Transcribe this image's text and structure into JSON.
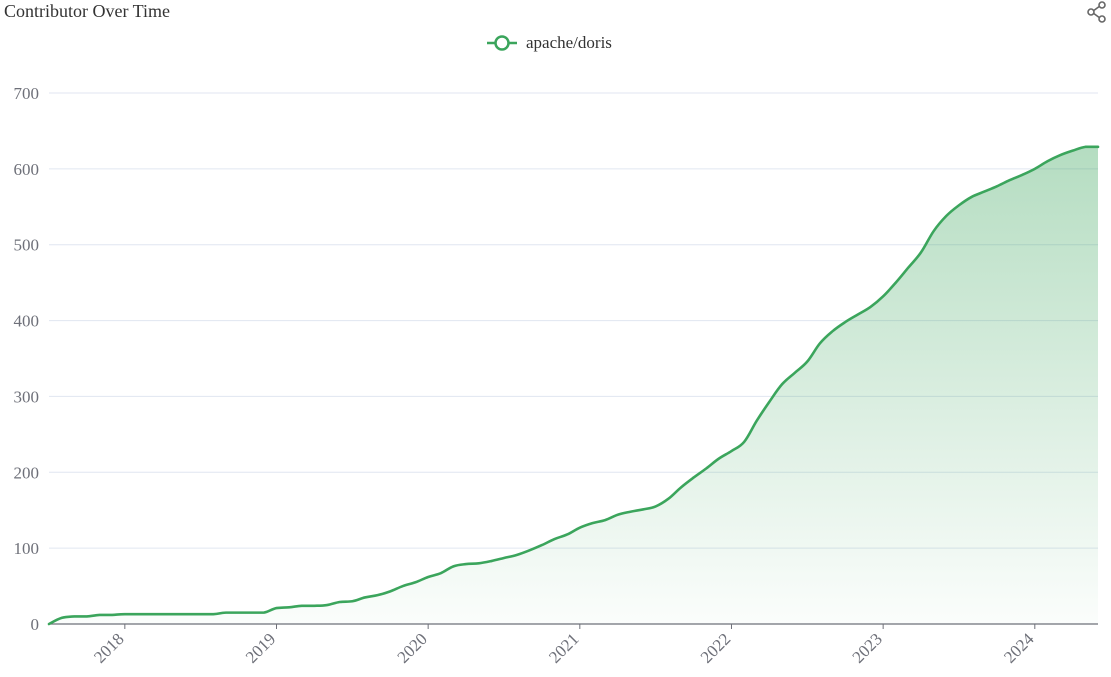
{
  "title": "Contributor Over Time",
  "toolbar": {
    "share_icon": "share-icon"
  },
  "colors": {
    "line": "#3ba55c",
    "area": "#3ba55c",
    "grid": "#e0e6f1",
    "axis": "#6e7079"
  },
  "chart_data": {
    "type": "area",
    "title": "Contributor Over Time",
    "xlabel": "",
    "ylabel": "",
    "ylim": [
      0,
      700
    ],
    "yticks": [
      0,
      100,
      200,
      300,
      400,
      500,
      600,
      700
    ],
    "xlim": [
      "2017-07",
      "2024-06"
    ],
    "xticks": [
      "2018",
      "2019",
      "2020",
      "2021",
      "2022",
      "2023",
      "2024"
    ],
    "grid": true,
    "legend_position": "top-center",
    "series": [
      {
        "name": "apache/doris",
        "points": [
          [
            "2017-07",
            0
          ],
          [
            "2017-08",
            8
          ],
          [
            "2017-09",
            10
          ],
          [
            "2017-10",
            10
          ],
          [
            "2017-11",
            12
          ],
          [
            "2017-12",
            12
          ],
          [
            "2018-01",
            13
          ],
          [
            "2018-03",
            13
          ],
          [
            "2018-06",
            13
          ],
          [
            "2018-08",
            13
          ],
          [
            "2018-09",
            15
          ],
          [
            "2018-11",
            15
          ],
          [
            "2018-12",
            15
          ],
          [
            "2019-01",
            21
          ],
          [
            "2019-02",
            22
          ],
          [
            "2019-03",
            24
          ],
          [
            "2019-04",
            24
          ],
          [
            "2019-05",
            25
          ],
          [
            "2019-06",
            29
          ],
          [
            "2019-07",
            30
          ],
          [
            "2019-08",
            35
          ],
          [
            "2019-09",
            38
          ],
          [
            "2019-10",
            43
          ],
          [
            "2019-11",
            50
          ],
          [
            "2019-12",
            55
          ],
          [
            "2020-01",
            62
          ],
          [
            "2020-02",
            67
          ],
          [
            "2020-03",
            76
          ],
          [
            "2020-04",
            79
          ],
          [
            "2020-05",
            80
          ],
          [
            "2020-06",
            83
          ],
          [
            "2020-07",
            87
          ],
          [
            "2020-08",
            91
          ],
          [
            "2020-09",
            97
          ],
          [
            "2020-10",
            104
          ],
          [
            "2020-11",
            112
          ],
          [
            "2020-12",
            118
          ],
          [
            "2021-01",
            127
          ],
          [
            "2021-02",
            133
          ],
          [
            "2021-03",
            137
          ],
          [
            "2021-04",
            144
          ],
          [
            "2021-05",
            148
          ],
          [
            "2021-06",
            151
          ],
          [
            "2021-07",
            155
          ],
          [
            "2021-08",
            165
          ],
          [
            "2021-09",
            180
          ],
          [
            "2021-10",
            193
          ],
          [
            "2021-11",
            205
          ],
          [
            "2021-12",
            218
          ],
          [
            "2022-01",
            228
          ],
          [
            "2022-02",
            240
          ],
          [
            "2022-03",
            268
          ],
          [
            "2022-04",
            293
          ],
          [
            "2022-05",
            316
          ],
          [
            "2022-06",
            331
          ],
          [
            "2022-07",
            346
          ],
          [
            "2022-08",
            370
          ],
          [
            "2022-09",
            386
          ],
          [
            "2022-10",
            398
          ],
          [
            "2022-11",
            408
          ],
          [
            "2022-12",
            418
          ],
          [
            "2023-01",
            432
          ],
          [
            "2023-02",
            450
          ],
          [
            "2023-03",
            470
          ],
          [
            "2023-04",
            490
          ],
          [
            "2023-05",
            518
          ],
          [
            "2023-06",
            538
          ],
          [
            "2023-07",
            552
          ],
          [
            "2023-08",
            563
          ],
          [
            "2023-09",
            570
          ],
          [
            "2023-10",
            577
          ],
          [
            "2023-11",
            585
          ],
          [
            "2023-12",
            592
          ],
          [
            "2024-01",
            600
          ],
          [
            "2024-02",
            610
          ],
          [
            "2024-03",
            618
          ],
          [
            "2024-04",
            624
          ],
          [
            "2024-05",
            629
          ],
          [
            "2024-06",
            629
          ]
        ]
      }
    ]
  }
}
